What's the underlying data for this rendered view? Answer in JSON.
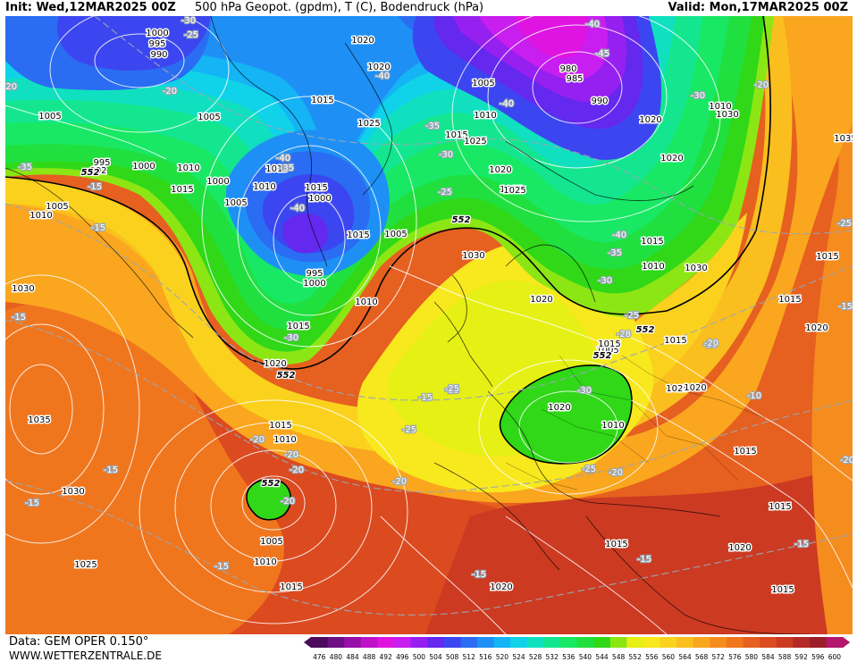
{
  "header": {
    "init": "Init: Wed,12MAR2025 00Z",
    "title": "500 hPa Geopot. (gpdm), T (C), Bodendruck (hPa)",
    "valid": "Valid: Mon,17MAR2025 00Z"
  },
  "footer": {
    "data_source": "Data: GEM OPER 0.150°",
    "website": "WWW.WETTERZENTRALE.DE"
  },
  "legend": {
    "values": [
      "476",
      "480",
      "484",
      "488",
      "492",
      "496",
      "500",
      "504",
      "508",
      "512",
      "516",
      "520",
      "524",
      "528",
      "532",
      "536",
      "540",
      "544",
      "548",
      "552",
      "556",
      "560",
      "564",
      "568",
      "572",
      "576",
      "580",
      "584",
      "588",
      "592",
      "596",
      "600"
    ],
    "colors": [
      "#4b0a5c",
      "#6e0f86",
      "#960fa8",
      "#be12c8",
      "#e014e0",
      "#c81ef0",
      "#9620f0",
      "#6428ee",
      "#3c46f0",
      "#2a6cf2",
      "#1e90f5",
      "#14b4f5",
      "#10d2e8",
      "#10e0c0",
      "#14e690",
      "#18e864",
      "#20e040",
      "#30d818",
      "#8ce614",
      "#e6f014",
      "#f8e81e",
      "#fad21e",
      "#fabe1e",
      "#faa61e",
      "#f58c1e",
      "#f0761e",
      "#e66020",
      "#dc4a20",
      "#cc3a22",
      "#b42a26",
      "#9c1e2a",
      "#b4186e"
    ]
  },
  "map": {
    "h552_labels": [
      "552",
      "552",
      "552",
      "552",
      "552",
      "552"
    ],
    "pressure_labels": [
      "1000",
      "995",
      "990",
      "1020",
      "1020",
      "1005",
      "980",
      "985",
      "990",
      "1015",
      "1005",
      "1005",
      "1010",
      "1015",
      "1025",
      "1035",
      "1010",
      "1030",
      "1020",
      "1020",
      "1000",
      "995",
      "992",
      "1010",
      "1015",
      "1005",
      "1000",
      "1015",
      "1025",
      "1010",
      "1010",
      "1005",
      "1000",
      "1015",
      "1020",
      "1015",
      "1015",
      "995",
      "1000",
      "1030",
      "1030",
      "1010",
      "1025",
      "1005",
      "1020",
      "1020",
      "1015",
      "1005",
      "1015",
      "1010",
      "1015",
      "1030",
      "1015",
      "1020",
      "1015",
      "1025",
      "1020",
      "1020",
      "1010",
      "1035",
      "1030",
      "1025",
      "1015",
      "1010",
      "1005",
      "1010",
      "1015",
      "1020",
      "1015",
      "1020",
      "1015",
      "1015",
      "1015",
      "1015"
    ],
    "temp_labels": [
      "-30",
      "-25",
      "-20",
      "-20",
      "-40",
      "-35",
      "-45",
      "-40",
      "-40",
      "-30",
      "-20",
      "-35",
      "-40",
      "-35",
      "-30",
      "-25",
      "-40",
      "-15",
      "-15",
      "-40",
      "-35",
      "-30",
      "-25",
      "-28",
      "-30",
      "-25",
      "-25",
      "-30",
      "-20",
      "-20",
      "-20",
      "-20",
      "-20",
      "-25",
      "-15",
      "-15",
      "-20",
      "-15",
      "-15",
      "-15",
      "-20",
      "-10",
      "-15",
      "-15",
      "-20",
      "-25",
      "-25",
      "-15",
      "-20",
      "-15"
    ]
  }
}
